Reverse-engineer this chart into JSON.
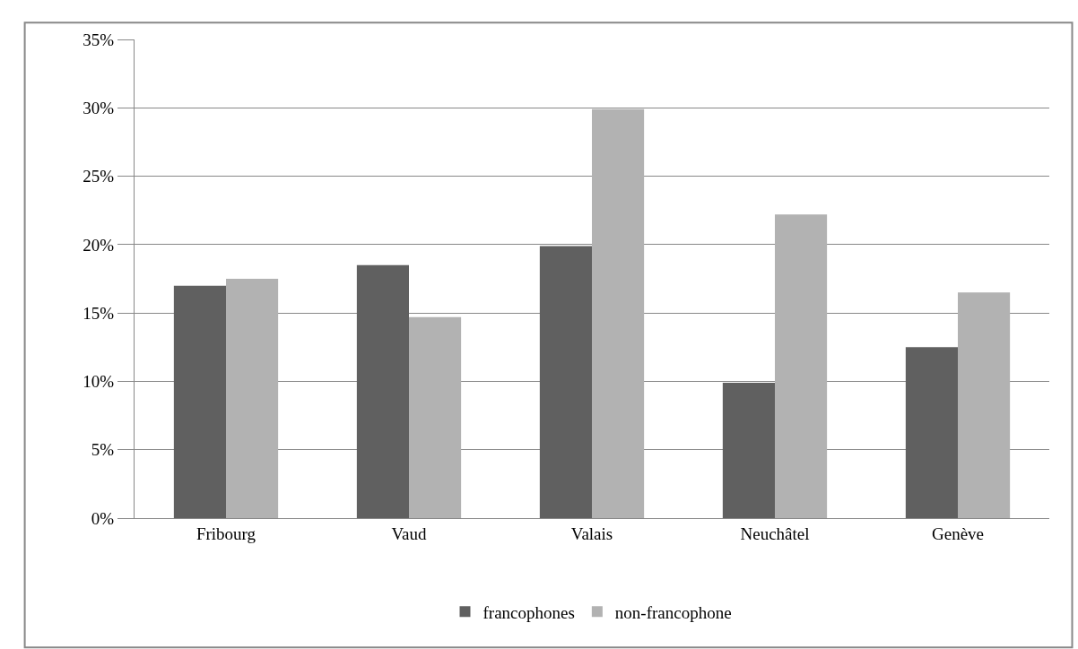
{
  "chart_data": {
    "type": "bar",
    "categories": [
      "Fribourg",
      "Vaud",
      "Valais",
      "Neuchâtel",
      "Genève"
    ],
    "series": [
      {
        "name": "francophones",
        "color": "#606060",
        "values": [
          17.0,
          18.5,
          19.9,
          9.9,
          12.5
        ]
      },
      {
        "name": "non-francophone",
        "color": "#b2b2b2",
        "values": [
          17.5,
          14.7,
          29.9,
          22.2,
          16.5
        ]
      }
    ],
    "ylim": [
      0,
      35
    ],
    "yticks": [
      {
        "value": 0,
        "label": "0%"
      },
      {
        "value": 5,
        "label": "5%"
      },
      {
        "value": 10,
        "label": "10%"
      },
      {
        "value": 15,
        "label": "15%"
      },
      {
        "value": 20,
        "label": "20%"
      },
      {
        "value": 25,
        "label": "25%"
      },
      {
        "value": 30,
        "label": "30%"
      },
      {
        "value": 35,
        "label": "35%"
      }
    ],
    "grid": "y",
    "legend": "bottom"
  }
}
